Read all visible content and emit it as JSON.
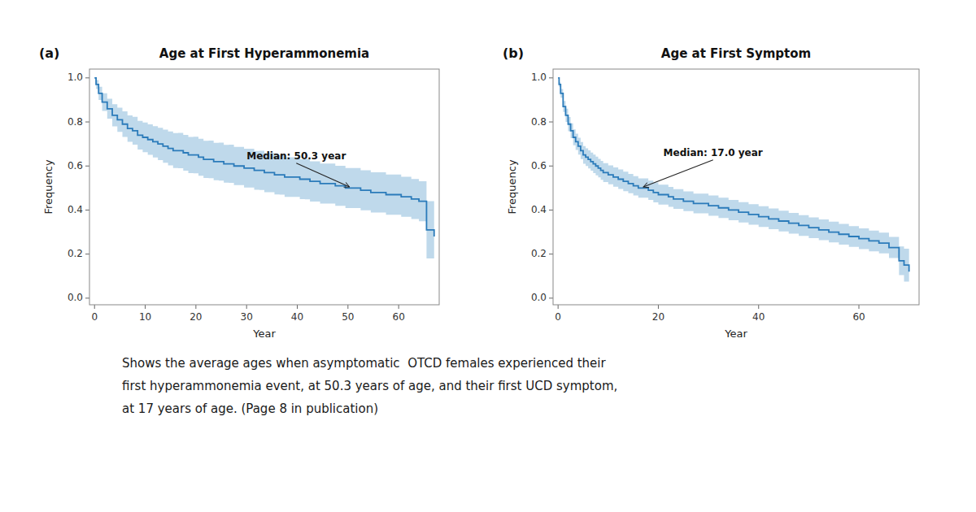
{
  "chart_data": [
    {
      "type": "step",
      "title": "Age at First Hyperammonemia",
      "panel_label": "(a)",
      "xlabel": "Year",
      "ylabel": "Frequency",
      "grid": false,
      "x": [
        0,
        0.3,
        0.8,
        1.5,
        2.5,
        3.5,
        4.5,
        5.5,
        6.5,
        7.5,
        8.5,
        9.5,
        10.5,
        11.5,
        12.5,
        13.5,
        14.5,
        15.5,
        16.5,
        17.5,
        18.5,
        19.5,
        20.5,
        21.5,
        22.5,
        23.5,
        24.5,
        25.5,
        26.5,
        27.5,
        28.5,
        29.5,
        30.5,
        31.5,
        32.5,
        33.5,
        34.5,
        35.5,
        36.5,
        37.5,
        38.5,
        39.5,
        40.5,
        41.5,
        42.5,
        43.5,
        44.5,
        45.5,
        46.5,
        47.5,
        48.5,
        49.5,
        50.3,
        51.5,
        52.5,
        53.5,
        54.5,
        55.5,
        56.5,
        57.5,
        58.5,
        59.5,
        60.5,
        61.5,
        62.5,
        63.5,
        64.0,
        65.5,
        67.0
      ],
      "series": [
        {
          "type": "band",
          "color": "#9dc4e0",
          "lower": [
            1.0,
            0.95,
            0.9,
            0.85,
            0.815,
            0.78,
            0.755,
            0.732,
            0.71,
            0.697,
            0.675,
            0.663,
            0.651,
            0.639,
            0.627,
            0.615,
            0.603,
            0.591,
            0.59,
            0.579,
            0.568,
            0.567,
            0.556,
            0.546,
            0.545,
            0.535,
            0.534,
            0.524,
            0.523,
            0.513,
            0.513,
            0.502,
            0.502,
            0.492,
            0.491,
            0.481,
            0.481,
            0.471,
            0.47,
            0.46,
            0.46,
            0.46,
            0.45,
            0.449,
            0.439,
            0.439,
            0.429,
            0.429,
            0.429,
            0.419,
            0.419,
            0.409,
            0.409,
            0.409,
            0.399,
            0.399,
            0.389,
            0.389,
            0.389,
            0.379,
            0.379,
            0.379,
            0.369,
            0.369,
            0.359,
            0.359,
            0.349,
            0.18,
            0.13
          ],
          "upper": [
            1.0,
            0.99,
            0.96,
            0.93,
            0.905,
            0.88,
            0.865,
            0.848,
            0.83,
            0.823,
            0.805,
            0.797,
            0.789,
            0.781,
            0.773,
            0.765,
            0.757,
            0.749,
            0.75,
            0.741,
            0.732,
            0.733,
            0.724,
            0.714,
            0.715,
            0.705,
            0.706,
            0.696,
            0.697,
            0.687,
            0.687,
            0.678,
            0.678,
            0.668,
            0.669,
            0.659,
            0.659,
            0.649,
            0.65,
            0.64,
            0.64,
            0.64,
            0.63,
            0.631,
            0.621,
            0.621,
            0.611,
            0.611,
            0.611,
            0.601,
            0.601,
            0.591,
            0.591,
            0.591,
            0.581,
            0.581,
            0.571,
            0.571,
            0.571,
            0.561,
            0.561,
            0.561,
            0.551,
            0.551,
            0.541,
            0.541,
            0.531,
            0.44,
            0.43
          ]
        },
        {
          "type": "step",
          "color": "#2b7bba",
          "values": [
            1.0,
            0.97,
            0.93,
            0.89,
            0.86,
            0.83,
            0.81,
            0.79,
            0.77,
            0.76,
            0.74,
            0.73,
            0.72,
            0.71,
            0.7,
            0.69,
            0.68,
            0.67,
            0.67,
            0.66,
            0.65,
            0.65,
            0.64,
            0.63,
            0.63,
            0.62,
            0.62,
            0.61,
            0.61,
            0.6,
            0.6,
            0.59,
            0.59,
            0.58,
            0.58,
            0.57,
            0.57,
            0.56,
            0.56,
            0.55,
            0.55,
            0.55,
            0.54,
            0.54,
            0.53,
            0.53,
            0.52,
            0.52,
            0.52,
            0.51,
            0.51,
            0.5,
            0.5,
            0.5,
            0.49,
            0.49,
            0.48,
            0.48,
            0.48,
            0.47,
            0.47,
            0.47,
            0.46,
            0.46,
            0.45,
            0.45,
            0.44,
            0.31,
            0.28
          ]
        }
      ],
      "xlim": [
        -1,
        68
      ],
      "xticks": [
        0,
        10,
        20,
        30,
        40,
        50,
        60
      ],
      "ylim": [
        -0.03,
        1.04
      ],
      "yticks": [
        {
          "value": 0,
          "label": "0.0"
        },
        0.2,
        0.4,
        0.6,
        0.8,
        {
          "value": 1,
          "label": "1.0"
        }
      ],
      "annotations": [
        {
          "text": "Median: 50.3 year",
          "x": 50.3,
          "y": 0.505,
          "text_x": 30,
          "text_y": 0.62
        }
      ]
    },
    {
      "type": "step",
      "title": "Age at First Symptom",
      "panel_label": "(b)",
      "xlabel": "Year",
      "ylabel": "Frequency",
      "grid": false,
      "x": [
        0,
        0.2,
        0.5,
        1.0,
        1.5,
        2.0,
        2.5,
        3.0,
        3.5,
        4.0,
        4.5,
        5.0,
        5.5,
        6.0,
        6.5,
        7.0,
        7.5,
        8.0,
        8.5,
        9.0,
        9.5,
        10.0,
        11.0,
        12.0,
        13.0,
        14.0,
        15.0,
        16.0,
        17.0,
        18.0,
        19.0,
        20.0,
        21.0,
        22.0,
        23.0,
        24.0,
        25.0,
        26.0,
        27.0,
        28.0,
        30.0,
        32.0,
        34.0,
        36.0,
        38.0,
        40.0,
        42.0,
        44.0,
        46.0,
        48.0,
        50.0,
        52.0,
        54.0,
        56.0,
        58.0,
        60.0,
        62.0,
        64.0,
        66.0,
        68.0,
        69.0,
        70.0
      ],
      "series": [
        {
          "type": "band",
          "color": "#9dc4e0",
          "lower": [
            1.0,
            0.96,
            0.91,
            0.845,
            0.8,
            0.758,
            0.726,
            0.694,
            0.673,
            0.652,
            0.631,
            0.61,
            0.6,
            0.589,
            0.579,
            0.568,
            0.558,
            0.548,
            0.537,
            0.527,
            0.527,
            0.517,
            0.506,
            0.496,
            0.486,
            0.476,
            0.466,
            0.456,
            0.456,
            0.446,
            0.435,
            0.425,
            0.425,
            0.415,
            0.405,
            0.405,
            0.395,
            0.395,
            0.385,
            0.385,
            0.374,
            0.364,
            0.354,
            0.344,
            0.333,
            0.323,
            0.313,
            0.303,
            0.293,
            0.283,
            0.273,
            0.263,
            0.253,
            0.243,
            0.233,
            0.223,
            0.213,
            0.203,
            0.182,
            0.105,
            0.075,
            0.04
          ],
          "upper": [
            1.0,
            0.98,
            0.95,
            0.895,
            0.86,
            0.822,
            0.794,
            0.766,
            0.747,
            0.728,
            0.709,
            0.69,
            0.68,
            0.671,
            0.661,
            0.652,
            0.642,
            0.632,
            0.623,
            0.613,
            0.613,
            0.603,
            0.594,
            0.584,
            0.574,
            0.564,
            0.554,
            0.544,
            0.544,
            0.534,
            0.525,
            0.515,
            0.515,
            0.505,
            0.495,
            0.495,
            0.485,
            0.485,
            0.475,
            0.475,
            0.466,
            0.456,
            0.446,
            0.436,
            0.427,
            0.417,
            0.407,
            0.397,
            0.387,
            0.377,
            0.367,
            0.357,
            0.347,
            0.337,
            0.327,
            0.317,
            0.307,
            0.297,
            0.278,
            0.235,
            0.225,
            0.2
          ]
        },
        {
          "type": "step",
          "color": "#2b7bba",
          "values": [
            1.0,
            0.97,
            0.93,
            0.87,
            0.83,
            0.79,
            0.76,
            0.73,
            0.71,
            0.69,
            0.67,
            0.65,
            0.64,
            0.63,
            0.62,
            0.61,
            0.6,
            0.59,
            0.58,
            0.57,
            0.57,
            0.56,
            0.55,
            0.54,
            0.53,
            0.52,
            0.51,
            0.5,
            0.5,
            0.49,
            0.48,
            0.47,
            0.47,
            0.46,
            0.45,
            0.45,
            0.44,
            0.44,
            0.43,
            0.43,
            0.42,
            0.41,
            0.4,
            0.39,
            0.38,
            0.37,
            0.36,
            0.35,
            0.34,
            0.33,
            0.32,
            0.31,
            0.3,
            0.29,
            0.28,
            0.27,
            0.26,
            0.25,
            0.23,
            0.17,
            0.15,
            0.12
          ]
        }
      ],
      "xlim": [
        -1,
        72
      ],
      "xticks": [
        0,
        20,
        40,
        60
      ],
      "ylim": [
        -0.03,
        1.04
      ],
      "yticks": [
        {
          "value": 0,
          "label": "0.0"
        },
        0.2,
        0.4,
        0.6,
        0.8,
        {
          "value": 1,
          "label": "1.0"
        }
      ],
      "annotations": [
        {
          "text": "Median: 17.0 year",
          "x": 17.0,
          "y": 0.505,
          "text_x": 21,
          "text_y": 0.635
        }
      ]
    }
  ],
  "caption": [
    "Shows the average ages when asymptomatic  OTCD females experienced their",
    "first hyperammonemia event, at 50.3 years of age, and their first UCD symptom,",
    "at 17 years of age. (Page 8 in publication)"
  ]
}
